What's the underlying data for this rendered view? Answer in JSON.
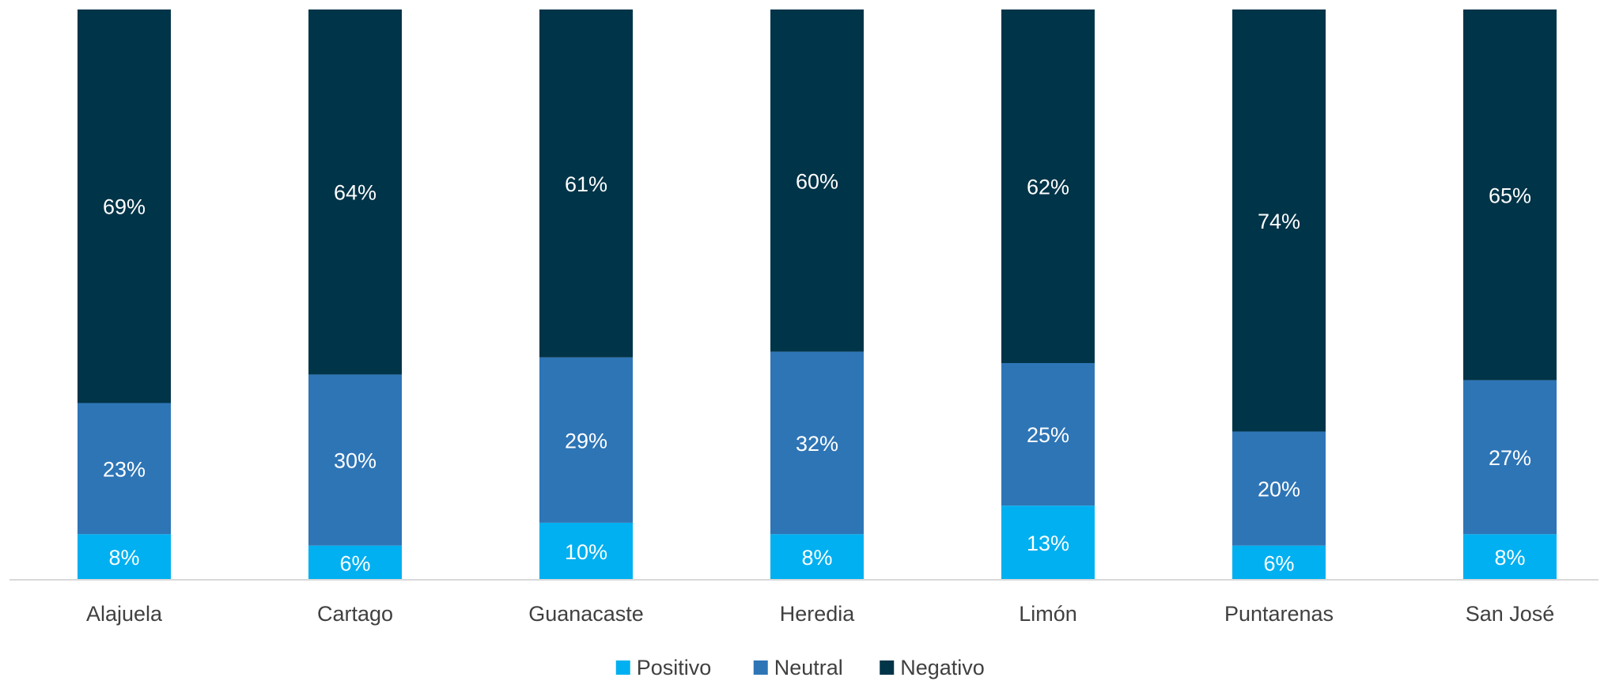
{
  "chart_data": {
    "type": "bar",
    "stacked": true,
    "percent": true,
    "categories": [
      "Alajuela",
      "Cartago",
      "Guanacaste",
      "Heredia",
      "Limón",
      "Puntarenas",
      "San José"
    ],
    "series": [
      {
        "name": "Positivo",
        "color": "#00B0F0",
        "values": [
          8,
          6,
          10,
          8,
          13,
          6,
          8
        ],
        "labels": [
          "8%",
          "6%",
          "10%",
          "8%",
          "13%",
          "6%",
          "8%"
        ]
      },
      {
        "name": "Neutral",
        "color": "#2E75B6",
        "values": [
          23,
          30,
          29,
          32,
          25,
          20,
          27
        ],
        "labels": [
          "23%",
          "30%",
          "29%",
          "32%",
          "25%",
          "20%",
          "27%"
        ]
      },
      {
        "name": "Negativo",
        "color": "#003448",
        "values": [
          69,
          64,
          61,
          60,
          62,
          74,
          65
        ],
        "labels": [
          "69%",
          "64%",
          "61%",
          "60%",
          "62%",
          "74%",
          "65%"
        ]
      }
    ],
    "ylim": [
      0,
      100
    ],
    "legend": "bottom",
    "grid": false
  }
}
